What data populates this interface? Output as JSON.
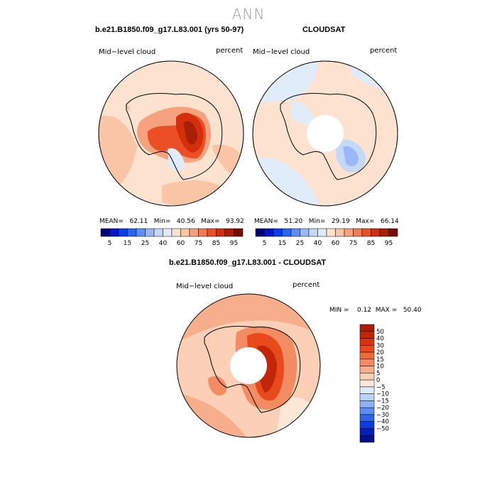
{
  "figure": {
    "title": "ANN"
  },
  "panels": {
    "model": {
      "title": "b.e21.B1850.f09_g17.L83.001 (yrs 50-97)",
      "left_label": "Mid−level cloud",
      "right_label": "percent",
      "stats": "MEAN=   62.11   Min=   40.56   Max=   93.92"
    },
    "obs": {
      "title": "CLOUDSAT",
      "left_label": "Mid−level cloud",
      "right_label": "percent",
      "stats": "MEAN=   51.20   Min=   29.19   Max=   66.14"
    },
    "diff": {
      "title": "b.e21.B1850.f09_g17.L83.001 - CLOUDSAT",
      "left_label": "Mid−level cloud",
      "right_label": "percent",
      "stats": "MIN =    0.12  MAX =   50.40"
    }
  },
  "chart_data": [
    {
      "type": "heatmap",
      "title": "b.e21.B1850.f09_g17.L83.001 (yrs 50-97)",
      "projection": "south-polar-stereographic",
      "variable": "Mid−level cloud",
      "units": "percent",
      "mean": 62.11,
      "min": 40.56,
      "max": 93.92,
      "colorbar": {
        "orientation": "horizontal",
        "tick_labels": [
          "5",
          "15",
          "25",
          "40",
          "60",
          "75",
          "85",
          "95"
        ],
        "colors": [
          "#00007a",
          "#0016c8",
          "#0a3cf0",
          "#2a66f5",
          "#5d8df7",
          "#9ab8f7",
          "#c4d9f7",
          "#e0ecfa",
          "#fde3cf",
          "#fac4a6",
          "#f6a27e",
          "#f27b53",
          "#ea4f25",
          "#d42f0d",
          "#a81e06",
          "#780a00"
        ]
      }
    },
    {
      "type": "heatmap",
      "title": "CLOUDSAT",
      "projection": "south-polar-stereographic",
      "variable": "Mid−level cloud",
      "units": "percent",
      "mean": 51.2,
      "min": 29.19,
      "max": 66.14,
      "colorbar": {
        "orientation": "horizontal",
        "tick_labels": [
          "5",
          "15",
          "25",
          "40",
          "60",
          "75",
          "85",
          "95"
        ],
        "colors": [
          "#00007a",
          "#0016c8",
          "#0a3cf0",
          "#2a66f5",
          "#5d8df7",
          "#9ab8f7",
          "#c4d9f7",
          "#e0ecfa",
          "#fde3cf",
          "#fac4a6",
          "#f6a27e",
          "#f27b53",
          "#ea4f25",
          "#d42f0d",
          "#a81e06",
          "#780a00"
        ]
      }
    },
    {
      "type": "heatmap",
      "title": "b.e21.B1850.f09_g17.L83.001 - CLOUDSAT",
      "projection": "south-polar-stereographic",
      "variable": "Mid−level cloud",
      "units": "percent",
      "min": 0.12,
      "max": 50.4,
      "colorbar": {
        "orientation": "vertical",
        "tick_labels": [
          "50",
          "40",
          "30",
          "20",
          "15",
          "10",
          "5",
          "0",
          "−5",
          "−10",
          "−15",
          "−20",
          "−30",
          "−40",
          "−50"
        ],
        "colors_top_to_bottom": [
          "#a81e06",
          "#c1250a",
          "#d63410",
          "#e84a1c",
          "#f06a3d",
          "#f48c63",
          "#f7ae8c",
          "#fbd0b6",
          "#fde8d8",
          "#ddeafa",
          "#b9d2f7",
          "#8fb2f5",
          "#5d8cf3",
          "#2e63ee",
          "#0b3cde",
          "#0520b8",
          "#00108c"
        ]
      }
    }
  ]
}
